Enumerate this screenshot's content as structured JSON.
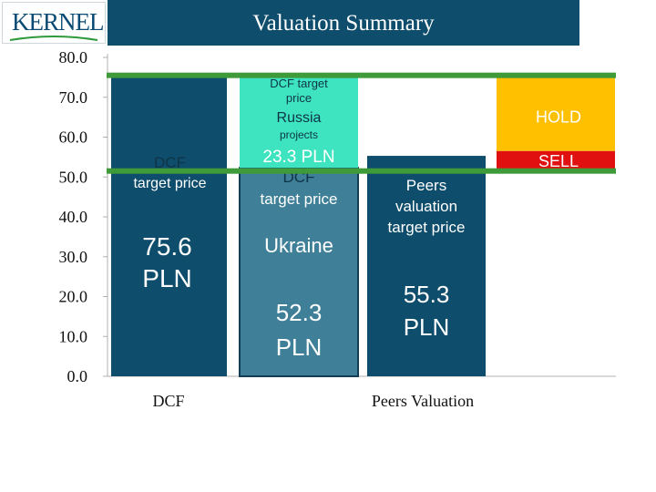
{
  "header": {
    "logo_text": "KERNEL",
    "title": "Valuation Summary"
  },
  "colors": {
    "bar": "#0e4d6b",
    "bar_ukraine": "#3f7f97",
    "bar_russia": "#3ee3c0",
    "hold": "#ffc000",
    "sell": "#e01010",
    "threshold_line": "#3f9b3a",
    "text_dark": "#0e3447",
    "text_light": "#ffffff"
  },
  "chart_data": {
    "type": "bar",
    "title": "Valuation Summary",
    "ylim": [
      0,
      80
    ],
    "y_ticks": [
      "0.0",
      "10.0",
      "20.0",
      "30.0",
      "40.0",
      "50.0",
      "60.0",
      "70.0",
      "80.0"
    ],
    "categories": [
      "DCF",
      "Peers Valuation"
    ],
    "x_labels": [
      "DCF",
      "Peers Valuation"
    ],
    "bars": [
      {
        "label_top": "DCF",
        "label_bottom": "target price",
        "value_text": "75.6",
        "unit": "PLN",
        "value": 75.6
      },
      {
        "segments": [
          {
            "name": "Ukraine",
            "caption": "DCF target price",
            "value_text": "52.3",
            "unit": "PLN",
            "value": 52.3
          },
          {
            "name": "Russia",
            "caption_top": "DCF target price",
            "caption_bottom": "projects",
            "value_text": "23.3",
            "unit": "PLN",
            "value": 23.3
          }
        ]
      },
      {
        "label_lines": [
          "Peers",
          "valuation",
          "target price"
        ],
        "value_text": "55.3",
        "unit": "PLN",
        "value": 55.3
      }
    ],
    "recommendation_bands": [
      {
        "label": "HOLD",
        "from": 56.5,
        "to": 75.5
      },
      {
        "label": "SELL",
        "from": 51.5,
        "to": 56.5
      }
    ],
    "threshold_lines": [
      75.5,
      51.5
    ]
  }
}
